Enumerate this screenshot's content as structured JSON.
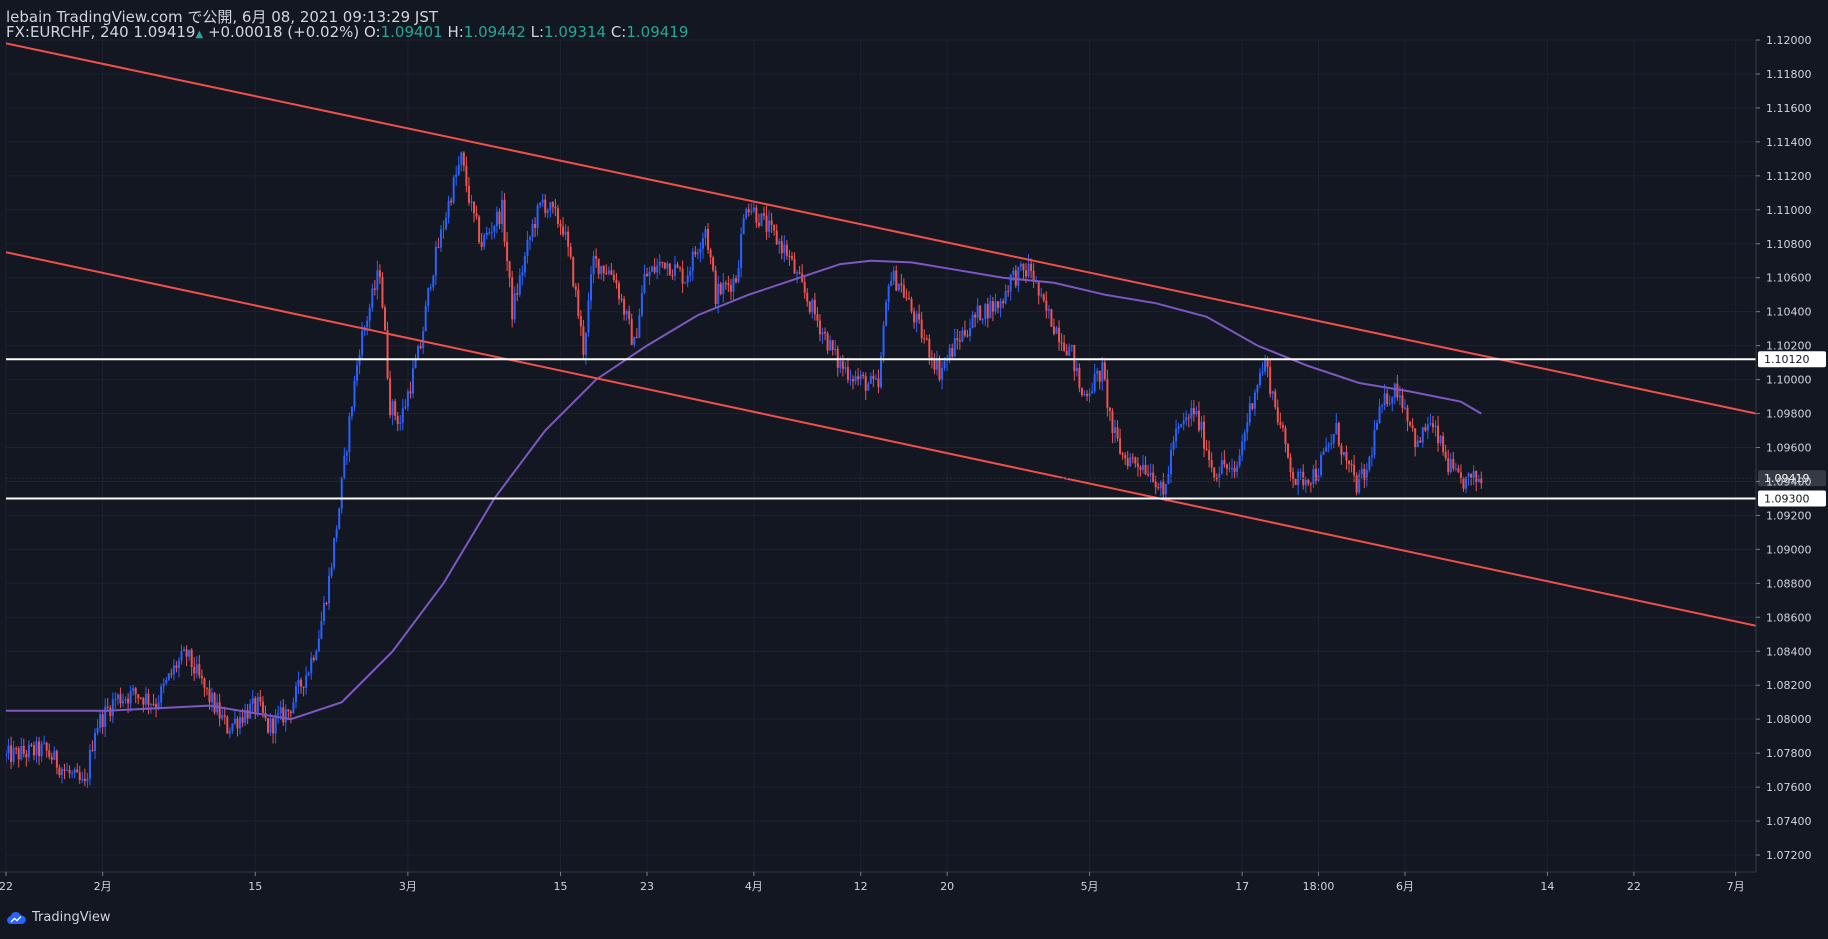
{
  "header": {
    "title": "lebain TradingView.com で公開, 6月 08, 2021 09:13:29 JST",
    "symbol": "FX:EURCHF, 240",
    "last": "1.09419",
    "change_arrow": "▲",
    "change": "+0.00018 (+0.02%)",
    "o_label": "O:",
    "o_value": "1.09401",
    "h_label": "H:",
    "h_value": "1.09442",
    "l_label": "L:",
    "l_value": "1.09314",
    "c_label": "C:",
    "c_value": "1.09419"
  },
  "footer": {
    "brand": "TradingView"
  },
  "colors": {
    "background": "#131722",
    "grid": "#1e2230",
    "up_candle": "#2962ff",
    "down_candle": "#ef5350",
    "trendline": "#f0504c",
    "moving_average": "#7e57c2",
    "horizontal_level": "#ffffff",
    "last_price_label": "#363a45"
  },
  "chart_data": {
    "type": "candlestick",
    "instrument": "FX:EURCHF",
    "timeframe": "240",
    "y_axis": {
      "ylim": [
        1.071,
        1.12
      ],
      "ticks": [
        "1.12000",
        "1.11800",
        "1.11600",
        "1.11400",
        "1.11200",
        "1.11000",
        "1.10800",
        "1.10600",
        "1.10400",
        "1.10200",
        "1.10000",
        "1.09800",
        "1.09600",
        "1.09400",
        "1.09200",
        "1.09000",
        "1.08800",
        "1.08600",
        "1.08400",
        "1.08200",
        "1.08000",
        "1.07800",
        "1.07600",
        "1.07400",
        "1.07200"
      ]
    },
    "x_axis": {
      "ticks": [
        {
          "label": "22",
          "t": 0
        },
        {
          "label": "2月",
          "t": 9.5
        },
        {
          "label": "15",
          "t": 24.5
        },
        {
          "label": "3月",
          "t": 39.5
        },
        {
          "label": "15",
          "t": 54.5
        },
        {
          "label": "23",
          "t": 63
        },
        {
          "label": "4月",
          "t": 73.5
        },
        {
          "label": "12",
          "t": 84
        },
        {
          "label": "20",
          "t": 92.5
        },
        {
          "label": "5月",
          "t": 106.5
        },
        {
          "label": "17",
          "t": 121.5
        },
        {
          "label": "18:00",
          "t": 129
        },
        {
          "label": "6月",
          "t": 137.5
        },
        {
          "label": "14",
          "t": 151.5
        },
        {
          "label": "22",
          "t": 160
        },
        {
          "label": "7月",
          "t": 170
        }
      ],
      "t_range": [
        0,
        172
      ]
    },
    "price_path": [
      [
        0,
        1.0778
      ],
      [
        4,
        1.0782
      ],
      [
        6,
        1.077
      ],
      [
        8,
        1.076
      ],
      [
        9,
        1.0795
      ],
      [
        11,
        1.0812
      ],
      [
        13,
        1.0815
      ],
      [
        15,
        1.081
      ],
      [
        17,
        1.0832
      ],
      [
        18,
        1.0838
      ],
      [
        20,
        1.0815
      ],
      [
        22,
        1.0795
      ],
      [
        24,
        1.0805
      ],
      [
        25,
        1.0808
      ],
      [
        26,
        1.0795
      ],
      [
        28,
        1.0805
      ],
      [
        30,
        1.083
      ],
      [
        31,
        1.085
      ],
      [
        32,
        1.0882
      ],
      [
        33,
        1.0925
      ],
      [
        34,
        1.0975
      ],
      [
        35,
        1.102
      ],
      [
        37,
        1.1065
      ],
      [
        38,
        1.0985
      ],
      [
        39,
        1.0975
      ],
      [
        41,
        1.102
      ],
      [
        42,
        1.106
      ],
      [
        44,
        1.111
      ],
      [
        45,
        1.113
      ],
      [
        46,
        1.11
      ],
      [
        47,
        1.108
      ],
      [
        49,
        1.11
      ],
      [
        50,
        1.104
      ],
      [
        52,
        1.109
      ],
      [
        53,
        1.1105
      ],
      [
        55,
        1.109
      ],
      [
        56,
        1.106
      ],
      [
        57,
        1.1018
      ],
      [
        58,
        1.107
      ],
      [
        60,
        1.1062
      ],
      [
        62,
        1.102
      ],
      [
        63,
        1.106
      ],
      [
        65,
        1.107
      ],
      [
        67,
        1.106
      ],
      [
        69,
        1.109
      ],
      [
        70,
        1.105
      ],
      [
        72,
        1.106
      ],
      [
        73,
        1.1105
      ],
      [
        75,
        1.109
      ],
      [
        77,
        1.1075
      ],
      [
        78,
        1.106
      ],
      [
        80,
        1.1035
      ],
      [
        82,
        1.101
      ],
      [
        84,
        1.1
      ],
      [
        86,
        1.0995
      ],
      [
        87,
        1.106
      ],
      [
        88,
        1.1058
      ],
      [
        90,
        1.103
      ],
      [
        92,
        1.1005
      ],
      [
        94,
        1.1025
      ],
      [
        96,
        1.104
      ],
      [
        98,
        1.1045
      ],
      [
        99,
        1.106
      ],
      [
        101,
        1.1065
      ],
      [
        102,
        1.1045
      ],
      [
        103,
        1.1035
      ],
      [
        105,
        1.1015
      ],
      [
        106,
        1.099
      ],
      [
        108,
        1.1005
      ],
      [
        109,
        1.097
      ],
      [
        110,
        1.0955
      ],
      [
        112,
        1.095
      ],
      [
        113,
        1.0945
      ],
      [
        114,
        1.093
      ],
      [
        115,
        1.0965
      ],
      [
        117,
        1.0982
      ],
      [
        118,
        1.0965
      ],
      [
        119,
        1.0945
      ],
      [
        120,
        1.095
      ],
      [
        121,
        1.0942
      ],
      [
        122,
        1.097
      ],
      [
        123,
        1.0995
      ],
      [
        124,
        1.101
      ],
      [
        125,
        1.0985
      ],
      [
        126,
        1.096
      ],
      [
        127,
        1.094
      ],
      [
        129,
        1.0945
      ],
      [
        131,
        1.097
      ],
      [
        132,
        1.095
      ],
      [
        133,
        1.0938
      ],
      [
        134,
        1.0945
      ],
      [
        135,
        1.0975
      ],
      [
        136,
        1.099
      ],
      [
        137,
        1.0995
      ],
      [
        138,
        1.098
      ],
      [
        139,
        1.096
      ],
      [
        140,
        1.0975
      ],
      [
        141,
        1.0965
      ],
      [
        142,
        1.095
      ],
      [
        143,
        1.094
      ],
      [
        144,
        1.094
      ],
      [
        145,
        1.09419
      ]
    ],
    "moving_average": [
      [
        0,
        1.0805
      ],
      [
        10,
        1.0805
      ],
      [
        20,
        1.0808
      ],
      [
        28,
        1.08
      ],
      [
        33,
        1.081
      ],
      [
        38,
        1.084
      ],
      [
        43,
        1.088
      ],
      [
        48,
        1.093
      ],
      [
        53,
        1.097
      ],
      [
        58,
        1.1
      ],
      [
        63,
        1.102
      ],
      [
        68,
        1.1038
      ],
      [
        73,
        1.105
      ],
      [
        78,
        1.106
      ],
      [
        82,
        1.1068
      ],
      [
        85,
        1.107
      ],
      [
        89,
        1.1069
      ],
      [
        93,
        1.1065
      ],
      [
        98,
        1.106
      ],
      [
        103,
        1.1057
      ],
      [
        108,
        1.105
      ],
      [
        113,
        1.1045
      ],
      [
        118,
        1.1037
      ],
      [
        123,
        1.102
      ],
      [
        128,
        1.1008
      ],
      [
        133,
        1.0998
      ],
      [
        138,
        1.0993
      ],
      [
        143,
        1.0987
      ],
      [
        145,
        1.098
      ]
    ],
    "trendlines": [
      {
        "t1": 0,
        "p1": 1.1198,
        "t2": 172,
        "p2": 1.098
      },
      {
        "t1": 0,
        "p1": 1.1075,
        "t2": 172,
        "p2": 1.0855
      }
    ],
    "horizontal_levels": [
      {
        "price": 1.1012,
        "label": "1.10120"
      },
      {
        "price": 1.093,
        "label": "1.09300"
      }
    ],
    "last_price": {
      "price": 1.09419,
      "label": "1.09419"
    }
  }
}
